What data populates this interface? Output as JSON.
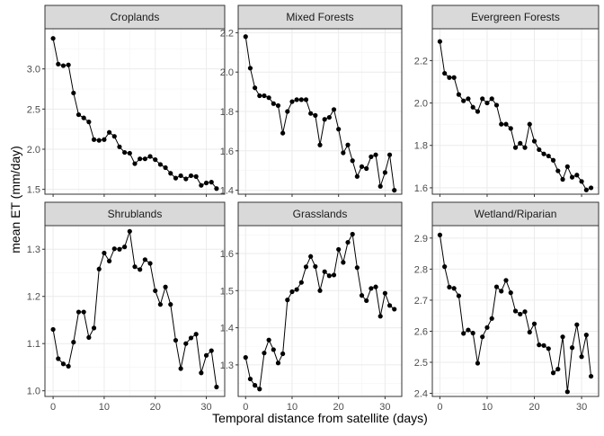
{
  "chart_data": {
    "type": "line",
    "xlabel": "Temporal distance from satellite (days)",
    "ylabel": "mean ET (mm/day)",
    "xlim": [
      -1.6,
      33.6
    ],
    "x_ticks": [
      0,
      10,
      20,
      30
    ],
    "grid": true,
    "line_color": "#000000",
    "panels": [
      {
        "title": "Croplands",
        "ylim": [
          1.44,
          3.5
        ],
        "y_ticks": [
          1.5,
          2.0,
          2.5,
          3.0
        ],
        "y_tick_labels": [
          "1.5",
          "2.0",
          "2.5",
          "3.0"
        ],
        "x": [
          0,
          1,
          2,
          3,
          4,
          5,
          6,
          7,
          8,
          9,
          10,
          11,
          12,
          13,
          14,
          15,
          16,
          17,
          18,
          19,
          20,
          21,
          22,
          23,
          24,
          25,
          26,
          27,
          28,
          29,
          30,
          31,
          32
        ],
        "y": [
          3.38,
          3.06,
          3.04,
          3.05,
          2.7,
          2.43,
          2.39,
          2.34,
          2.12,
          2.11,
          2.12,
          2.21,
          2.16,
          2.03,
          1.96,
          1.95,
          1.82,
          1.88,
          1.88,
          1.91,
          1.87,
          1.81,
          1.77,
          1.7,
          1.64,
          1.67,
          1.63,
          1.67,
          1.66,
          1.55,
          1.58,
          1.59,
          1.51
        ]
      },
      {
        "title": "Mixed Forests",
        "ylim": [
          1.38,
          2.22
        ],
        "y_ticks": [
          1.4,
          1.6,
          1.8,
          2.0,
          2.2
        ],
        "y_tick_labels": [
          "1.4",
          "1.6",
          "1.8",
          "2.0",
          "2.2"
        ],
        "x": [
          0,
          1,
          2,
          3,
          4,
          5,
          6,
          7,
          8,
          9,
          10,
          11,
          12,
          13,
          14,
          15,
          16,
          17,
          18,
          19,
          20,
          21,
          22,
          23,
          24,
          25,
          26,
          27,
          28,
          29,
          30,
          31,
          32
        ],
        "y": [
          2.18,
          2.02,
          1.92,
          1.88,
          1.88,
          1.87,
          1.84,
          1.83,
          1.69,
          1.8,
          1.85,
          1.86,
          1.86,
          1.86,
          1.79,
          1.78,
          1.63,
          1.76,
          1.77,
          1.81,
          1.71,
          1.59,
          1.63,
          1.55,
          1.47,
          1.52,
          1.51,
          1.57,
          1.58,
          1.42,
          1.49,
          1.58,
          1.4
        ]
      },
      {
        "title": "Evergreen Forests",
        "ylim": [
          1.57,
          2.35
        ],
        "y_ticks": [
          1.6,
          1.8,
          2.0,
          2.2
        ],
        "y_tick_labels": [
          "1.6",
          "1.8",
          "2.0",
          "2.2"
        ],
        "x": [
          0,
          1,
          2,
          3,
          4,
          5,
          6,
          7,
          8,
          9,
          10,
          11,
          12,
          13,
          14,
          15,
          16,
          17,
          18,
          19,
          20,
          21,
          22,
          23,
          24,
          25,
          26,
          27,
          28,
          29,
          30,
          31,
          32
        ],
        "y": [
          2.29,
          2.14,
          2.12,
          2.12,
          2.04,
          2.01,
          2.02,
          1.98,
          1.96,
          2.02,
          2.0,
          2.02,
          1.99,
          1.9,
          1.9,
          1.88,
          1.79,
          1.81,
          1.79,
          1.9,
          1.82,
          1.78,
          1.76,
          1.75,
          1.73,
          1.68,
          1.64,
          1.7,
          1.65,
          1.66,
          1.63,
          1.59,
          1.6
        ]
      },
      {
        "title": "Shrublands",
        "ylim": [
          0.988,
          1.35
        ],
        "y_ticks": [
          1.0,
          1.1,
          1.2,
          1.3
        ],
        "y_tick_labels": [
          "1.0",
          "1.1",
          "1.2",
          "1.3"
        ],
        "x": [
          0,
          1,
          2,
          3,
          4,
          5,
          6,
          7,
          8,
          9,
          10,
          11,
          12,
          13,
          14,
          15,
          16,
          17,
          18,
          19,
          20,
          21,
          22,
          23,
          24,
          25,
          26,
          27,
          28,
          29,
          30,
          31,
          32
        ],
        "y": [
          1.13,
          1.068,
          1.057,
          1.052,
          1.103,
          1.167,
          1.167,
          1.113,
          1.133,
          1.258,
          1.292,
          1.275,
          1.301,
          1.3,
          1.305,
          1.338,
          1.263,
          1.257,
          1.278,
          1.27,
          1.212,
          1.183,
          1.22,
          1.183,
          1.107,
          1.047,
          1.1,
          1.112,
          1.12,
          1.038,
          1.075,
          1.085,
          1.008
        ]
      },
      {
        "title": "Grasslands",
        "ylim": [
          1.215,
          1.675
        ],
        "y_ticks": [
          1.3,
          1.4,
          1.5,
          1.6
        ],
        "y_tick_labels": [
          "1.3",
          "1.4",
          "1.5",
          "1.6"
        ],
        "x": [
          0,
          1,
          2,
          3,
          4,
          5,
          6,
          7,
          8,
          9,
          10,
          11,
          12,
          13,
          14,
          15,
          16,
          17,
          18,
          19,
          20,
          21,
          22,
          23,
          24,
          25,
          26,
          27,
          28,
          29,
          30,
          31,
          32
        ],
        "y": [
          1.32,
          1.262,
          1.245,
          1.235,
          1.332,
          1.367,
          1.341,
          1.305,
          1.33,
          1.475,
          1.497,
          1.503,
          1.522,
          1.564,
          1.592,
          1.565,
          1.5,
          1.551,
          1.54,
          1.542,
          1.611,
          1.576,
          1.63,
          1.652,
          1.562,
          1.487,
          1.473,
          1.506,
          1.51,
          1.431,
          1.493,
          1.46,
          1.45
        ]
      },
      {
        "title": "Wetland/Riparian",
        "ylim": [
          2.39,
          2.94
        ],
        "y_ticks": [
          2.4,
          2.5,
          2.6,
          2.7,
          2.8,
          2.9
        ],
        "y_tick_labels": [
          "2.4",
          "2.5",
          "2.6",
          "2.7",
          "2.8",
          "2.9"
        ],
        "x": [
          0,
          1,
          2,
          3,
          4,
          5,
          6,
          7,
          8,
          9,
          10,
          11,
          12,
          13,
          14,
          15,
          16,
          17,
          18,
          19,
          20,
          21,
          22,
          23,
          24,
          25,
          26,
          27,
          28,
          29,
          30,
          31,
          32
        ],
        "y": [
          2.91,
          2.808,
          2.742,
          2.738,
          2.714,
          2.593,
          2.604,
          2.594,
          2.497,
          2.582,
          2.612,
          2.641,
          2.743,
          2.729,
          2.764,
          2.724,
          2.665,
          2.655,
          2.663,
          2.597,
          2.624,
          2.556,
          2.554,
          2.544,
          2.466,
          2.478,
          2.582,
          2.405,
          2.547,
          2.621,
          2.518,
          2.588,
          2.455
        ]
      }
    ]
  }
}
